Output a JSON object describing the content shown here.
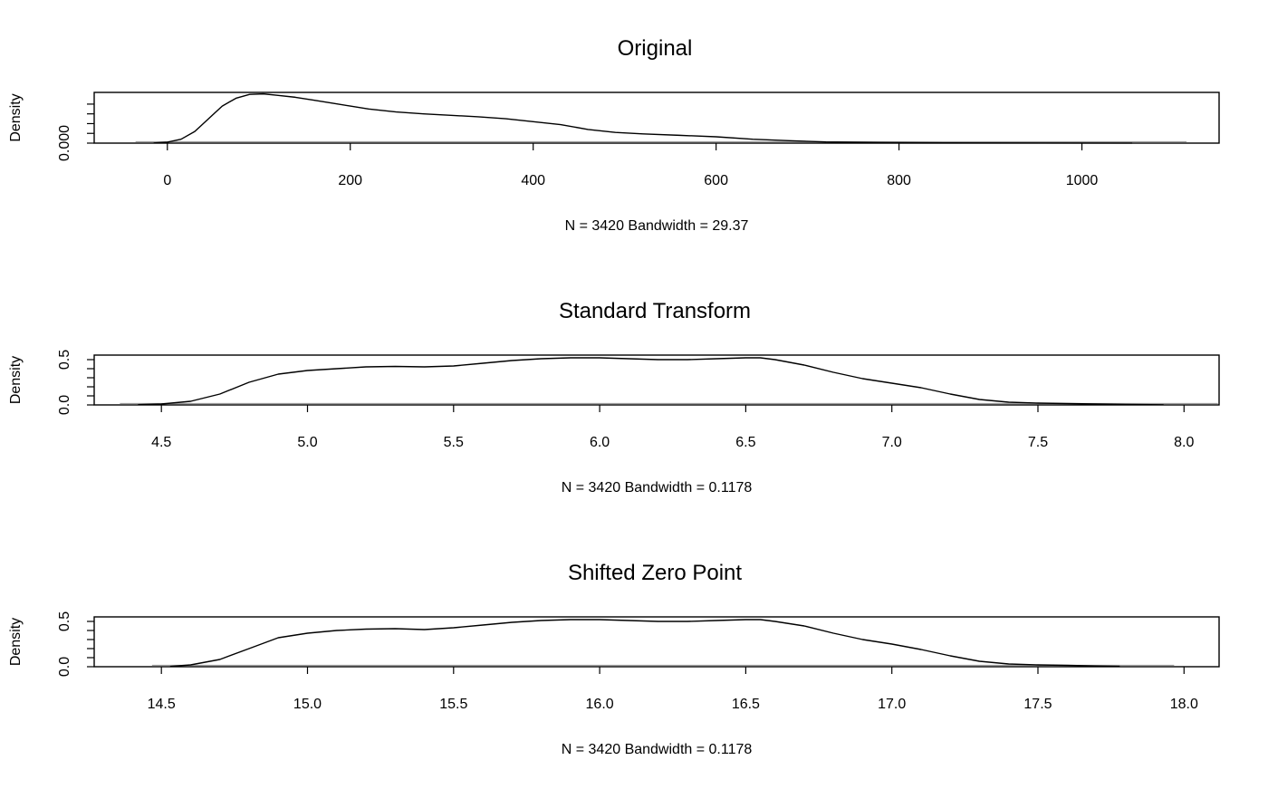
{
  "chart_data": [
    {
      "type": "line",
      "title": "Original",
      "xlabel": "N = 3420   Bandwidth = 29.37",
      "ylabel": "Density",
      "xlim": [
        -80,
        1150
      ],
      "ylim": [
        0,
        0.0052
      ],
      "x_ticks": [
        0,
        200,
        400,
        600,
        800,
        1000
      ],
      "x_tick_labels": [
        "0",
        "200",
        "400",
        "600",
        "800",
        "1000"
      ],
      "y_ticks": [
        0,
        0.001,
        0.002,
        0.003,
        0.004
      ],
      "y_tick_labels": [
        "0.000",
        "",
        "",
        "",
        ""
      ],
      "series": [
        {
          "x": [
            -15,
            0,
            15,
            30,
            45,
            60,
            75,
            90,
            105,
            120,
            140,
            160,
            180,
            200,
            220,
            250,
            280,
            310,
            340,
            370,
            400,
            430,
            460,
            490,
            520,
            560,
            600,
            640,
            680,
            720,
            780,
            850,
            950,
            1055
          ],
          "y": [
            2e-05,
            0.0001,
            0.0004,
            0.0012,
            0.0025,
            0.0038,
            0.0046,
            0.005,
            0.00505,
            0.0049,
            0.0047,
            0.0044,
            0.0041,
            0.0038,
            0.0035,
            0.0032,
            0.003,
            0.00285,
            0.0027,
            0.0025,
            0.0022,
            0.0019,
            0.0014,
            0.0011,
            0.00095,
            0.0008,
            0.00065,
            0.0004,
            0.00025,
            0.00012,
            6e-05,
            3e-05,
            2e-05,
            1e-05
          ]
        }
      ]
    },
    {
      "type": "line",
      "title": "Standard Transform",
      "xlabel": "N = 3420   Bandwidth = 0.1178",
      "ylabel": "Density",
      "xlim": [
        4.27,
        8.12
      ],
      "ylim": [
        0,
        0.55
      ],
      "x_ticks": [
        4.5,
        5.0,
        5.5,
        6.0,
        6.5,
        7.0,
        7.5,
        8.0
      ],
      "x_tick_labels": [
        "4.5",
        "5.0",
        "5.5",
        "6.0",
        "6.5",
        "7.0",
        "7.5",
        "8.0"
      ],
      "y_ticks": [
        0,
        0.1,
        0.2,
        0.3,
        0.4,
        0.5
      ],
      "y_tick_labels": [
        "0.0",
        "",
        "",
        "",
        "",
        "0.5"
      ],
      "series": [
        {
          "x": [
            4.42,
            4.5,
            4.6,
            4.7,
            4.8,
            4.9,
            5.0,
            5.1,
            5.2,
            5.3,
            5.4,
            5.5,
            5.6,
            5.7,
            5.8,
            5.9,
            6.0,
            6.1,
            6.2,
            6.3,
            6.4,
            6.5,
            6.55,
            6.6,
            6.7,
            6.8,
            6.9,
            7.0,
            7.1,
            7.2,
            7.3,
            7.4,
            7.5,
            7.6,
            7.7,
            7.8,
            7.93
          ],
          "y": [
            0.003,
            0.01,
            0.04,
            0.12,
            0.25,
            0.34,
            0.38,
            0.4,
            0.42,
            0.425,
            0.42,
            0.43,
            0.46,
            0.49,
            0.51,
            0.52,
            0.52,
            0.51,
            0.5,
            0.5,
            0.51,
            0.52,
            0.52,
            0.5,
            0.44,
            0.36,
            0.29,
            0.24,
            0.19,
            0.12,
            0.06,
            0.03,
            0.02,
            0.015,
            0.01,
            0.005,
            0.002
          ]
        }
      ]
    },
    {
      "type": "line",
      "title": "Shifted Zero Point",
      "xlabel": "N = 3420   Bandwidth = 0.1178",
      "ylabel": "Density",
      "xlim": [
        14.27,
        18.12
      ],
      "ylim": [
        0,
        0.55
      ],
      "x_ticks": [
        14.5,
        15.0,
        15.5,
        16.0,
        16.5,
        17.0,
        17.5,
        18.0
      ],
      "x_tick_labels": [
        "14.5",
        "15.0",
        "15.5",
        "16.0",
        "16.5",
        "17.0",
        "17.5",
        "18.0"
      ],
      "y_ticks": [
        0,
        0.1,
        0.2,
        0.3,
        0.4,
        0.5
      ],
      "y_tick_labels": [
        "0.0",
        "",
        "",
        "",
        "",
        "0.5"
      ],
      "series": [
        {
          "x": [
            14.53,
            14.6,
            14.7,
            14.8,
            14.9,
            15.0,
            15.1,
            15.2,
            15.3,
            15.4,
            15.5,
            15.6,
            15.7,
            15.8,
            15.9,
            16.0,
            16.1,
            16.2,
            16.3,
            16.4,
            16.5,
            16.55,
            16.6,
            16.7,
            16.8,
            16.9,
            17.0,
            17.1,
            17.2,
            17.3,
            17.4,
            17.5,
            17.6,
            17.7,
            17.78
          ],
          "y": [
            0.003,
            0.02,
            0.08,
            0.2,
            0.32,
            0.37,
            0.4,
            0.415,
            0.42,
            0.41,
            0.43,
            0.46,
            0.49,
            0.51,
            0.52,
            0.52,
            0.51,
            0.5,
            0.5,
            0.51,
            0.52,
            0.52,
            0.5,
            0.45,
            0.37,
            0.3,
            0.25,
            0.19,
            0.12,
            0.06,
            0.03,
            0.02,
            0.015,
            0.008,
            0.004
          ]
        }
      ]
    }
  ]
}
